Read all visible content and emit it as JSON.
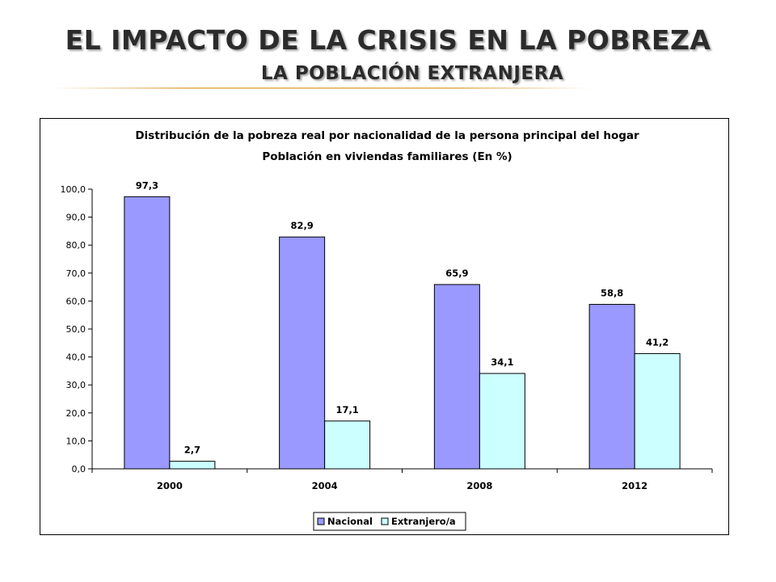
{
  "slide": {
    "title": "EL IMPACTO DE LA CRISIS EN LA POBREZA",
    "subtitle": "LA POBLACIÓN EXTRANJERA"
  },
  "colors": {
    "nacional": "#9999ff",
    "extranjero": "#ccffff",
    "accent_line": "#e8c07a"
  },
  "chart_data": {
    "type": "bar",
    "title": "Distribución de la pobreza real por nacionalidad de la persona principal del hogar",
    "subtitle": "Población en viviendas familiares (En %)",
    "categories": [
      "2000",
      "2004",
      "2008",
      "2012"
    ],
    "series": [
      {
        "name": "Nacional",
        "values": [
          97.3,
          82.9,
          65.9,
          58.8
        ],
        "labels": [
          "97,3",
          "82,9",
          "65,9",
          "58,8"
        ]
      },
      {
        "name": "Extranjero/a",
        "values": [
          2.7,
          17.1,
          34.1,
          41.2
        ],
        "labels": [
          "2,7",
          "17,1",
          "34,1",
          "41,2"
        ]
      }
    ],
    "ylim": [
      0,
      100
    ],
    "yticks": [
      0,
      10,
      20,
      30,
      40,
      50,
      60,
      70,
      80,
      90,
      100
    ],
    "ytick_labels": [
      "0,0",
      "10,0",
      "20,0",
      "30,0",
      "40,0",
      "50,0",
      "60,0",
      "70,0",
      "80,0",
      "90,0",
      "100,0"
    ],
    "grid": false,
    "legend": "bottom-center"
  }
}
